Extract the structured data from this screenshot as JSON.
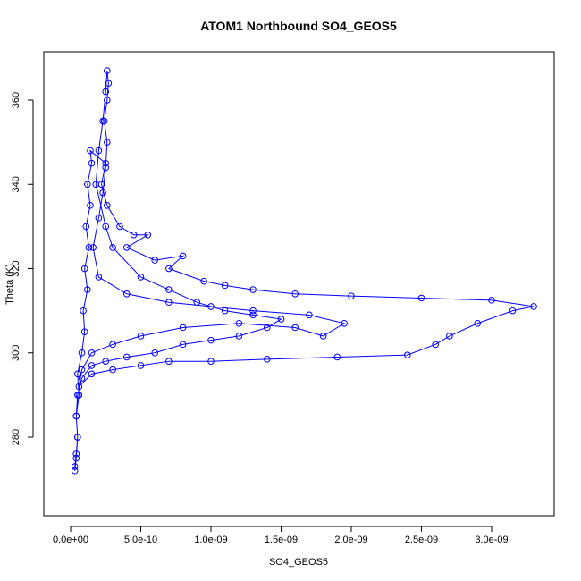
{
  "chart_data": {
    "type": "scatter",
    "title": "ATOM1 Northbound SO4_GEOS5",
    "x_label": "SO4_GEOS5",
    "y_label": "Theta (K)",
    "xlim": [
      -1.91e-10,
      3.446e-09
    ],
    "ylim": [
      261.33,
      371.46
    ],
    "xticks": [
      {
        "value": 0,
        "label": "0.0e+00"
      },
      {
        "value": 5e-10,
        "label": "5.0e-10"
      },
      {
        "value": 1e-09,
        "label": "1.0e-09"
      },
      {
        "value": 1.5e-09,
        "label": "1.5e-09"
      },
      {
        "value": 2e-09,
        "label": "2.0e-09"
      },
      {
        "value": 2.5e-09,
        "label": "2.5e-09"
      },
      {
        "value": 3e-09,
        "label": "3.0e-09"
      }
    ],
    "yticks": [
      280,
      300,
      320,
      340,
      360
    ],
    "series": [
      {
        "color": "#0000ff",
        "x": [
          3e-11,
          4e-11,
          5e-11,
          4e-11,
          6e-11,
          5e-11,
          8e-11,
          1e-10,
          9e-11,
          1.2e-10,
          1e-10,
          1.3e-10,
          1.1e-10,
          1.4e-10,
          1.2e-10,
          1.5e-10,
          1.4e-10,
          2.5e-10,
          2.2e-10,
          2.6e-10,
          3.5e-10,
          4.5e-10,
          5.5e-10,
          4e-10,
          6e-10,
          8e-10,
          7e-10,
          9.5e-10,
          1.1e-09,
          1.3e-09,
          1.6e-09,
          2e-09,
          2.5e-09,
          3e-09,
          3.3e-09,
          3.15e-09,
          2.9e-09,
          2.7e-09,
          2.6e-09,
          2.4e-09,
          1.9e-09,
          1.4e-09,
          1e-09,
          7e-10,
          5e-10,
          3e-10,
          1.5e-10,
          6e-11,
          8e-11,
          1.5e-10,
          3e-10,
          5e-10,
          8e-10,
          1.2e-09,
          1.6e-09,
          1.8e-09,
          1.95e-09,
          1.7e-09,
          1.3e-09,
          1e-09,
          7e-10,
          4e-10,
          2e-10,
          1.6e-10,
          2e-10,
          2.3e-10,
          2.5e-10,
          2.6e-10,
          2.4e-10,
          2.6e-10,
          2.7e-10,
          2.6e-10,
          2.5e-10,
          2.3e-10,
          2e-10,
          1.8e-10,
          2.5e-10,
          3e-10,
          5e-10,
          7e-10,
          9e-10,
          1.1e-09,
          1.3e-09,
          1.5e-09,
          1.4e-09,
          1.2e-09,
          1e-09,
          8e-10,
          6e-10,
          4e-10,
          2.5e-10,
          1.5e-10,
          8e-11,
          5e-11,
          4e-11,
          5e-11,
          4e-11,
          3e-11
        ],
        "y": [
          272,
          275,
          280,
          285,
          290,
          295,
          300,
          305,
          310,
          315,
          320,
          325,
          330,
          335,
          340,
          345,
          348,
          345,
          340,
          335,
          330,
          328,
          328,
          325,
          322,
          323,
          320,
          317,
          316,
          315,
          314,
          313.5,
          313,
          312.5,
          311,
          310,
          307,
          304,
          302,
          299.5,
          299,
          298.5,
          298,
          298,
          297,
          296,
          295,
          292,
          296,
          300,
          302,
          304,
          306,
          307,
          306,
          304,
          307,
          309,
          310,
          311,
          312,
          314,
          318,
          325,
          332,
          338,
          344,
          350,
          355,
          360,
          364,
          367,
          362,
          355,
          348,
          340,
          330,
          325,
          318,
          315,
          312,
          310,
          309,
          308,
          306,
          304,
          303,
          302,
          300,
          299,
          298,
          297,
          294,
          290,
          285,
          280,
          276,
          273
        ]
      }
    ]
  }
}
